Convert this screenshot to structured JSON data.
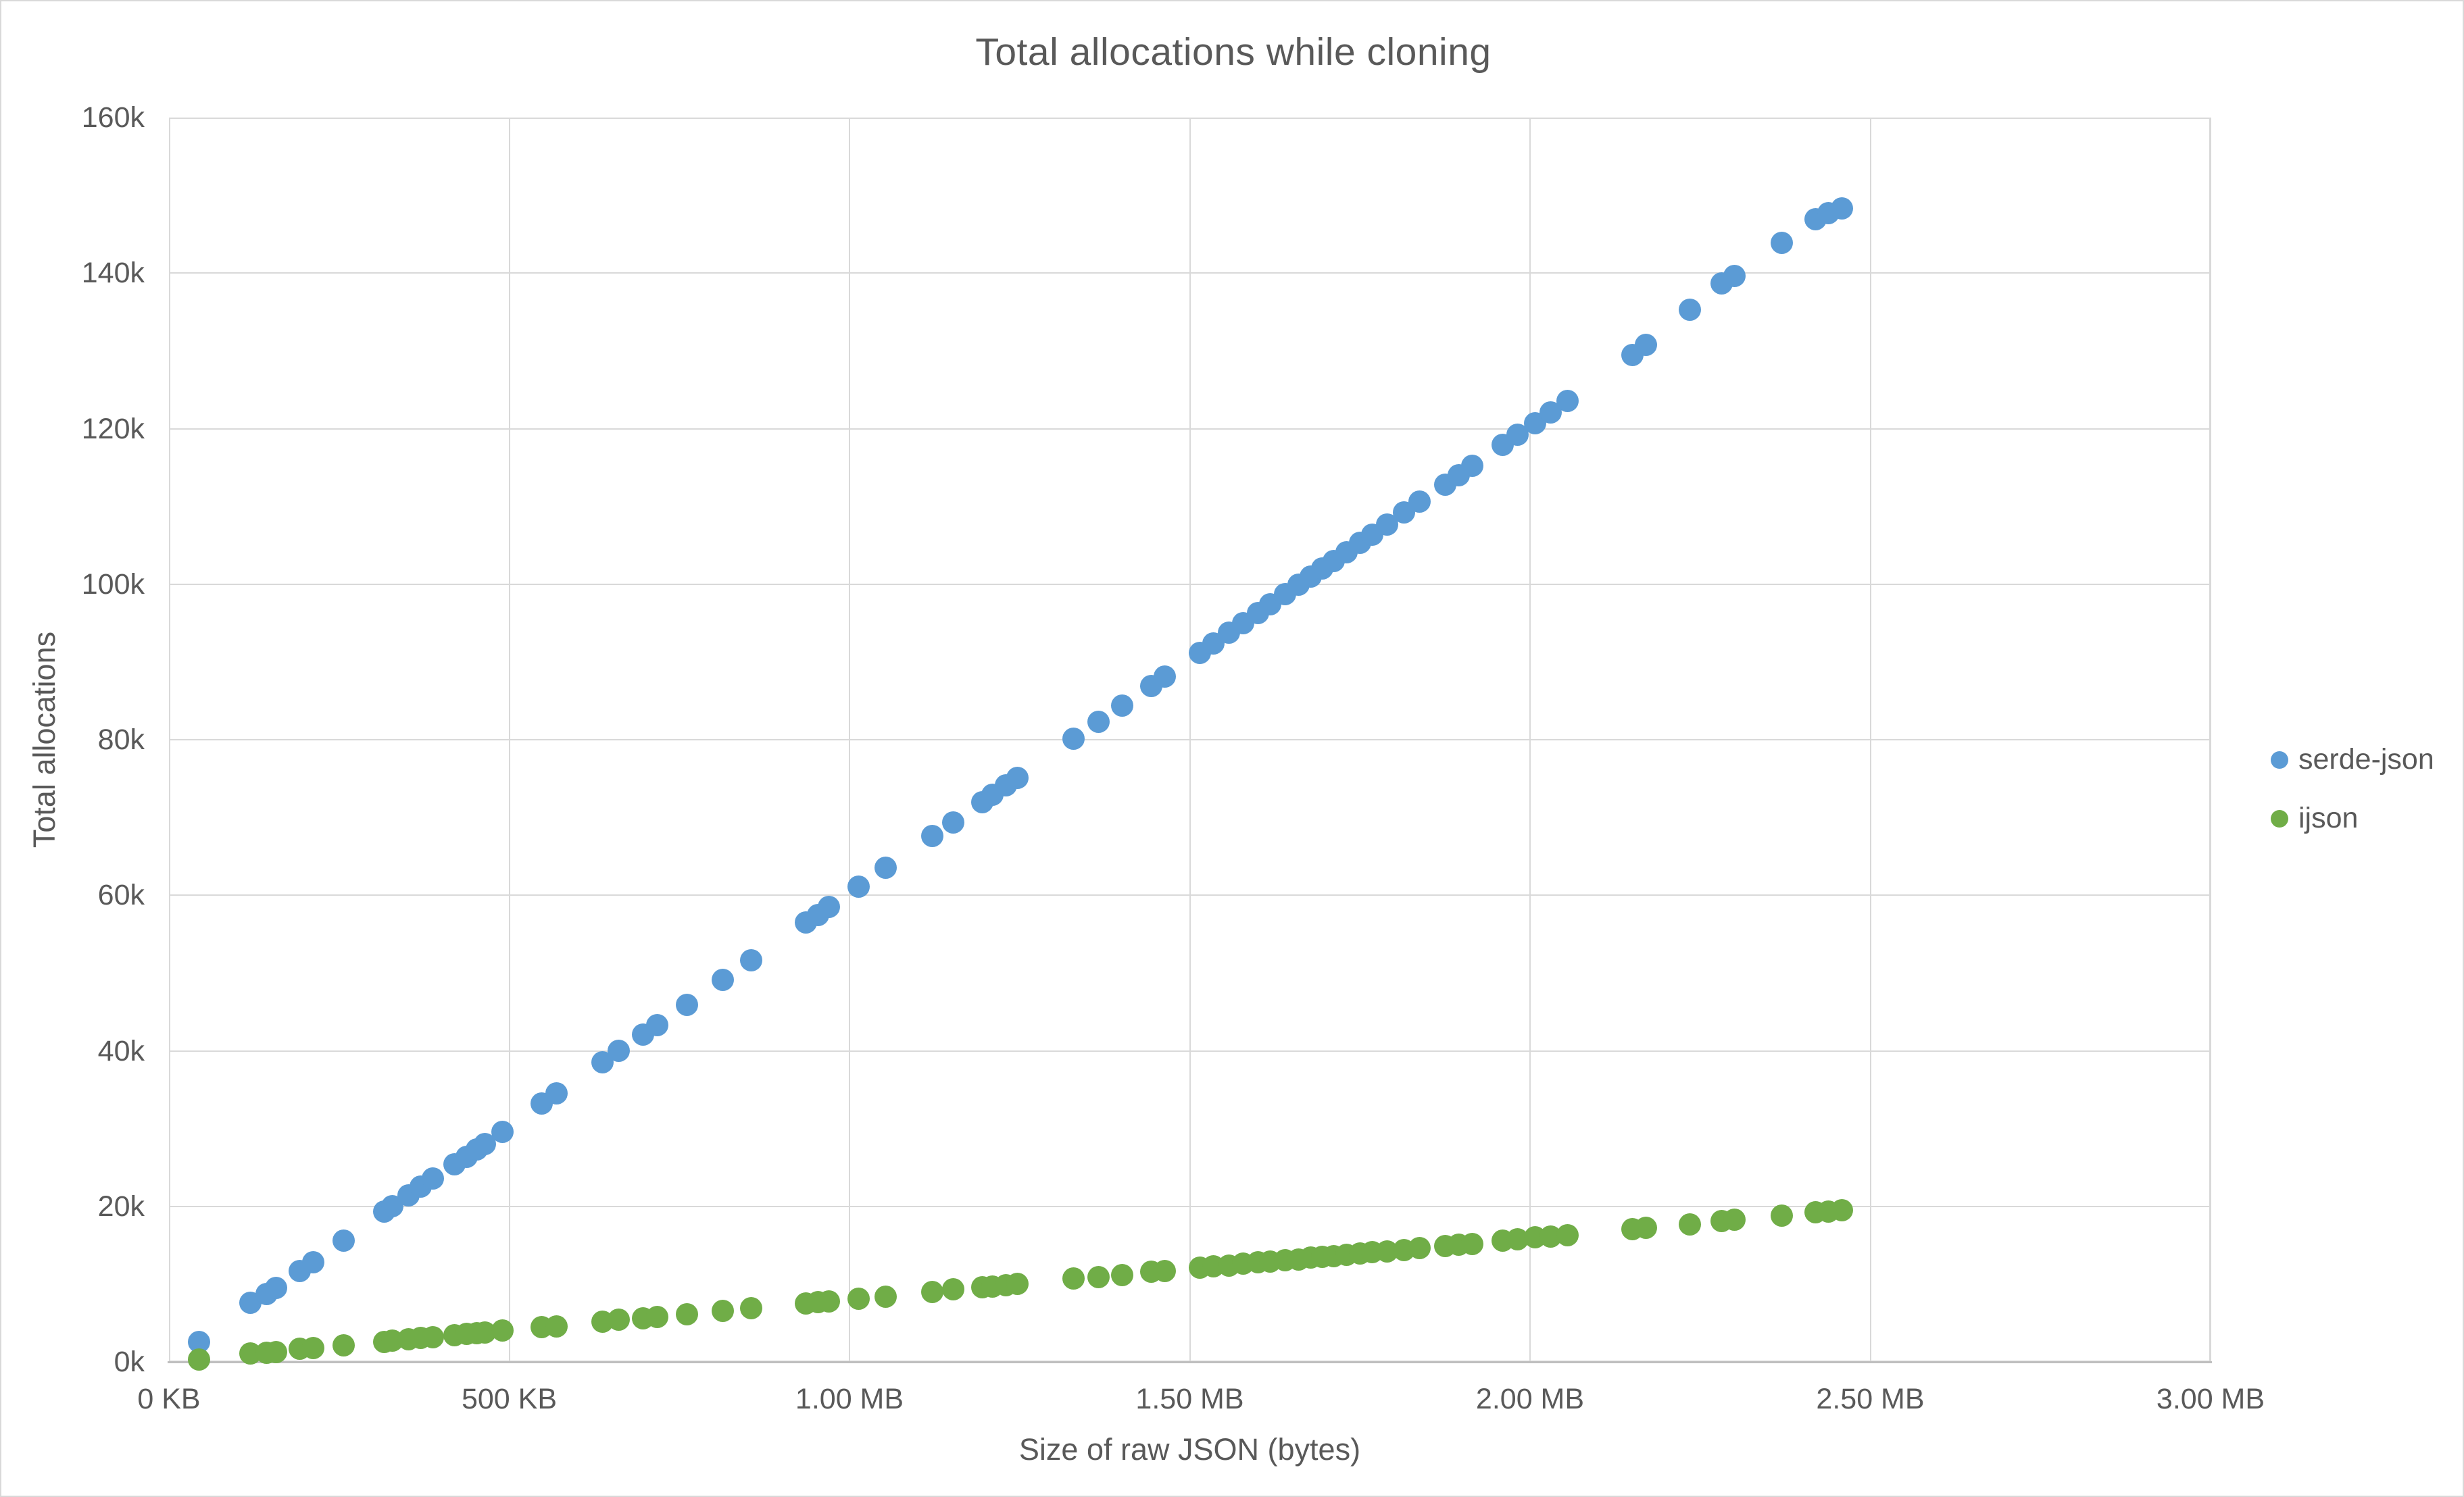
{
  "colors": {
    "background": "#FFFFFF",
    "gridline": "#D9D9D9",
    "axis_line": "#BFBFBF",
    "plot_border": "#D9D9D9",
    "text": "#595959",
    "serde_json_series": "#5B9BD5",
    "ijson_series": "#70AD47"
  },
  "legend": {
    "items": [
      {
        "label": "serde-json",
        "color": "#5B9BD5"
      },
      {
        "label": "ijson",
        "color": "#70AD47"
      }
    ]
  },
  "chart_data": {
    "type": "scatter",
    "title": "Total allocations while cloning",
    "xlabel": "Size of raw JSON (bytes)",
    "ylabel": "Total allocations",
    "xlim": [
      0,
      3
    ],
    "ylim": [
      0,
      160
    ],
    "x_unit": "MB",
    "y_unit": "thousands of allocations",
    "grid": true,
    "legend_position": "right",
    "x_ticks": [
      {
        "value": 0,
        "label": "0 KB"
      },
      {
        "value": 0.5,
        "label": "500 KB"
      },
      {
        "value": 1,
        "label": "1.00 MB"
      },
      {
        "value": 1.5,
        "label": "1.50 MB"
      },
      {
        "value": 2,
        "label": "2.00 MB"
      },
      {
        "value": 2.5,
        "label": "2.50 MB"
      },
      {
        "value": 3,
        "label": "3.00 MB"
      }
    ],
    "y_ticks": [
      {
        "value": 0,
        "label": "0k"
      },
      {
        "value": 20,
        "label": "20k"
      },
      {
        "value": 40,
        "label": "40k"
      },
      {
        "value": 60,
        "label": "60k"
      },
      {
        "value": 80,
        "label": "80k"
      },
      {
        "value": 100,
        "label": "100k"
      },
      {
        "value": 120,
        "label": "120k"
      },
      {
        "value": 140,
        "label": "140k"
      },
      {
        "value": 160,
        "label": "160k"
      }
    ],
    "series": [
      {
        "name": "serde-json",
        "color": "#5B9BD5",
        "points": [
          [
            0.044,
            2.6
          ],
          [
            0.12,
            7.6
          ],
          [
            0.143,
            8.7
          ],
          [
            0.157,
            9.5
          ],
          [
            0.192,
            11.7
          ],
          [
            0.212,
            12.8
          ],
          [
            0.257,
            15.6
          ],
          [
            0.316,
            19.3
          ],
          [
            0.328,
            20.0
          ],
          [
            0.352,
            21.4
          ],
          [
            0.37,
            22.5
          ],
          [
            0.388,
            23.6
          ],
          [
            0.42,
            25.4
          ],
          [
            0.437,
            26.4
          ],
          [
            0.452,
            27.3
          ],
          [
            0.464,
            28.0
          ],
          [
            0.49,
            29.6
          ],
          [
            0.548,
            33.2
          ],
          [
            0.57,
            34.5
          ],
          [
            0.637,
            38.5
          ],
          [
            0.661,
            40.0
          ],
          [
            0.697,
            42.1
          ],
          [
            0.717,
            43.3
          ],
          [
            0.761,
            45.9
          ],
          [
            0.814,
            49.1
          ],
          [
            0.856,
            51.6
          ],
          [
            0.936,
            56.5
          ],
          [
            0.954,
            57.5
          ],
          [
            0.97,
            58.5
          ],
          [
            1.013,
            61.1
          ],
          [
            1.053,
            63.5
          ],
          [
            1.122,
            67.6
          ],
          [
            1.152,
            69.4
          ],
          [
            1.195,
            72.0
          ],
          [
            1.21,
            72.9
          ],
          [
            1.23,
            74.1
          ],
          [
            1.247,
            75.1
          ],
          [
            1.329,
            80.1
          ],
          [
            1.366,
            82.3
          ],
          [
            1.401,
            84.4
          ],
          [
            1.443,
            86.9
          ],
          [
            1.463,
            88.1
          ],
          [
            1.515,
            91.2
          ],
          [
            1.535,
            92.4
          ],
          [
            1.558,
            93.8
          ],
          [
            1.578,
            95.0
          ],
          [
            1.6,
            96.3
          ],
          [
            1.618,
            97.4
          ],
          [
            1.64,
            98.7
          ],
          [
            1.66,
            99.9
          ],
          [
            1.678,
            101.0
          ],
          [
            1.695,
            102.0
          ],
          [
            1.712,
            103.0
          ],
          [
            1.73,
            104.1
          ],
          [
            1.75,
            105.3
          ],
          [
            1.768,
            106.4
          ],
          [
            1.79,
            107.7
          ],
          [
            1.815,
            109.2
          ],
          [
            1.838,
            110.6
          ],
          [
            1.875,
            112.8
          ],
          [
            1.895,
            114.0
          ],
          [
            1.915,
            115.2
          ],
          [
            1.96,
            117.9
          ],
          [
            1.982,
            119.2
          ],
          [
            2.007,
            120.7
          ],
          [
            2.03,
            122.1
          ],
          [
            2.055,
            123.6
          ],
          [
            2.15,
            129.5
          ],
          [
            2.17,
            130.8
          ],
          [
            2.235,
            135.3
          ],
          [
            2.282,
            138.7
          ],
          [
            2.3,
            139.6
          ],
          [
            2.37,
            143.9
          ],
          [
            2.42,
            146.9
          ],
          [
            2.438,
            147.7
          ],
          [
            2.458,
            148.3
          ]
        ]
      },
      {
        "name": "ijson",
        "color": "#70AD47",
        "points": [
          [
            0.044,
            0.3
          ],
          [
            0.12,
            1.1
          ],
          [
            0.143,
            1.2
          ],
          [
            0.157,
            1.3
          ],
          [
            0.192,
            1.7
          ],
          [
            0.212,
            1.8
          ],
          [
            0.257,
            2.1
          ],
          [
            0.316,
            2.6
          ],
          [
            0.328,
            2.7
          ],
          [
            0.352,
            2.9
          ],
          [
            0.37,
            3.1
          ],
          [
            0.388,
            3.2
          ],
          [
            0.42,
            3.4
          ],
          [
            0.437,
            3.6
          ],
          [
            0.452,
            3.7
          ],
          [
            0.464,
            3.8
          ],
          [
            0.49,
            4.0
          ],
          [
            0.548,
            4.5
          ],
          [
            0.57,
            4.6
          ],
          [
            0.637,
            5.2
          ],
          [
            0.661,
            5.4
          ],
          [
            0.697,
            5.6
          ],
          [
            0.717,
            5.8
          ],
          [
            0.761,
            6.1
          ],
          [
            0.814,
            6.6
          ],
          [
            0.856,
            6.9
          ],
          [
            0.936,
            7.5
          ],
          [
            0.954,
            7.7
          ],
          [
            0.97,
            7.8
          ],
          [
            1.013,
            8.1
          ],
          [
            1.053,
            8.4
          ],
          [
            1.122,
            9.0
          ],
          [
            1.152,
            9.3
          ],
          [
            1.195,
            9.6
          ],
          [
            1.21,
            9.7
          ],
          [
            1.23,
            9.9
          ],
          [
            1.247,
            10.0
          ],
          [
            1.329,
            10.7
          ],
          [
            1.366,
            10.9
          ],
          [
            1.401,
            11.2
          ],
          [
            1.443,
            11.6
          ],
          [
            1.463,
            11.7
          ],
          [
            1.515,
            12.1
          ],
          [
            1.535,
            12.3
          ],
          [
            1.558,
            12.4
          ],
          [
            1.578,
            12.6
          ],
          [
            1.6,
            12.8
          ],
          [
            1.618,
            12.9
          ],
          [
            1.64,
            13.1
          ],
          [
            1.66,
            13.2
          ],
          [
            1.678,
            13.4
          ],
          [
            1.695,
            13.5
          ],
          [
            1.712,
            13.6
          ],
          [
            1.73,
            13.8
          ],
          [
            1.75,
            13.9
          ],
          [
            1.768,
            14.1
          ],
          [
            1.79,
            14.2
          ],
          [
            1.815,
            14.4
          ],
          [
            1.838,
            14.6
          ],
          [
            1.875,
            14.9
          ],
          [
            1.895,
            15.1
          ],
          [
            1.915,
            15.2
          ],
          [
            1.96,
            15.6
          ],
          [
            1.982,
            15.8
          ],
          [
            2.007,
            16.0
          ],
          [
            2.03,
            16.1
          ],
          [
            2.055,
            16.3
          ],
          [
            2.15,
            17.1
          ],
          [
            2.17,
            17.2
          ],
          [
            2.235,
            17.7
          ],
          [
            2.282,
            18.1
          ],
          [
            2.3,
            18.3
          ],
          [
            2.37,
            18.8
          ],
          [
            2.42,
            19.2
          ],
          [
            2.438,
            19.3
          ],
          [
            2.458,
            19.5
          ]
        ]
      }
    ]
  }
}
